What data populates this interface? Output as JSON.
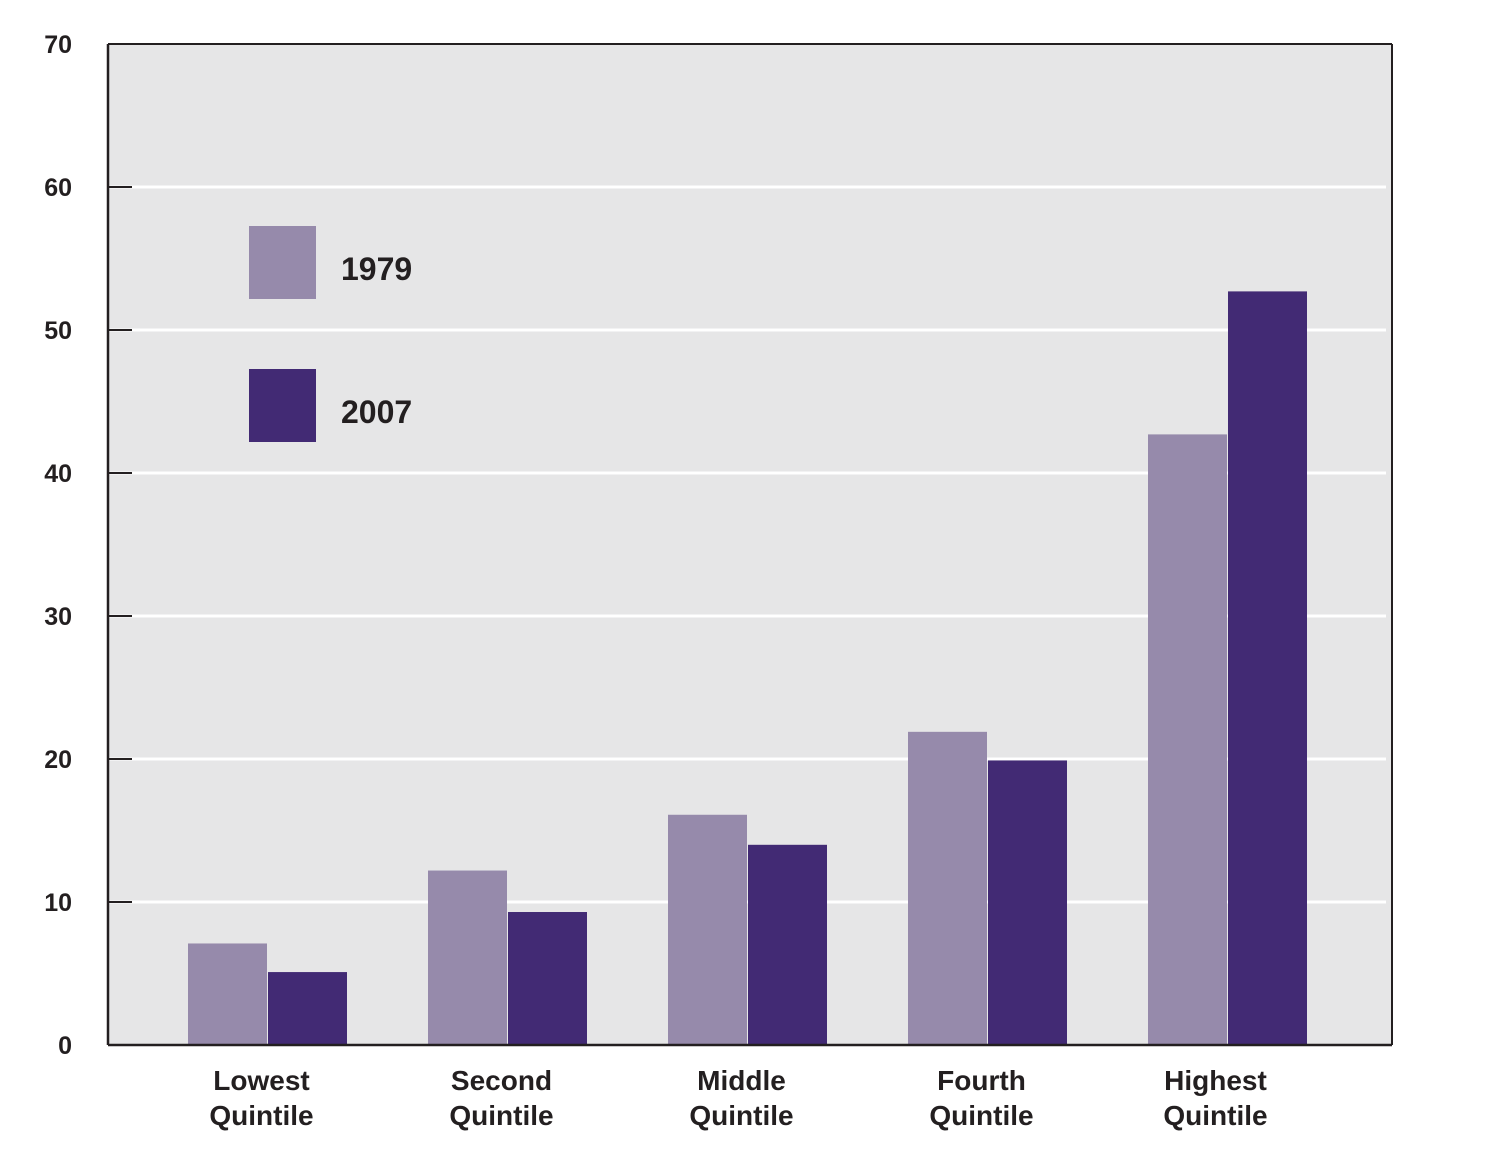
{
  "chart_data": {
    "type": "bar",
    "categories": [
      [
        "Lowest",
        "Quintile"
      ],
      [
        "Second",
        "Quintile"
      ],
      [
        "Middle",
        "Quintile"
      ],
      [
        "Fourth",
        "Quintile"
      ],
      [
        "Highest",
        "Quintile"
      ]
    ],
    "series": [
      {
        "name": "1979",
        "color": "#968aab",
        "values": [
          7.1,
          12.2,
          16.1,
          21.9,
          42.7
        ]
      },
      {
        "name": "2007",
        "color": "#422a74",
        "values": [
          5.1,
          9.3,
          14.0,
          19.9,
          52.7
        ]
      }
    ],
    "ylim": [
      0,
      70
    ],
    "yticks": [
      0,
      10,
      20,
      30,
      40,
      50,
      60,
      70
    ],
    "grid": true,
    "legend_position": "top-left",
    "plot_background": "#e6e6e7",
    "grid_color": "#ffffff"
  }
}
